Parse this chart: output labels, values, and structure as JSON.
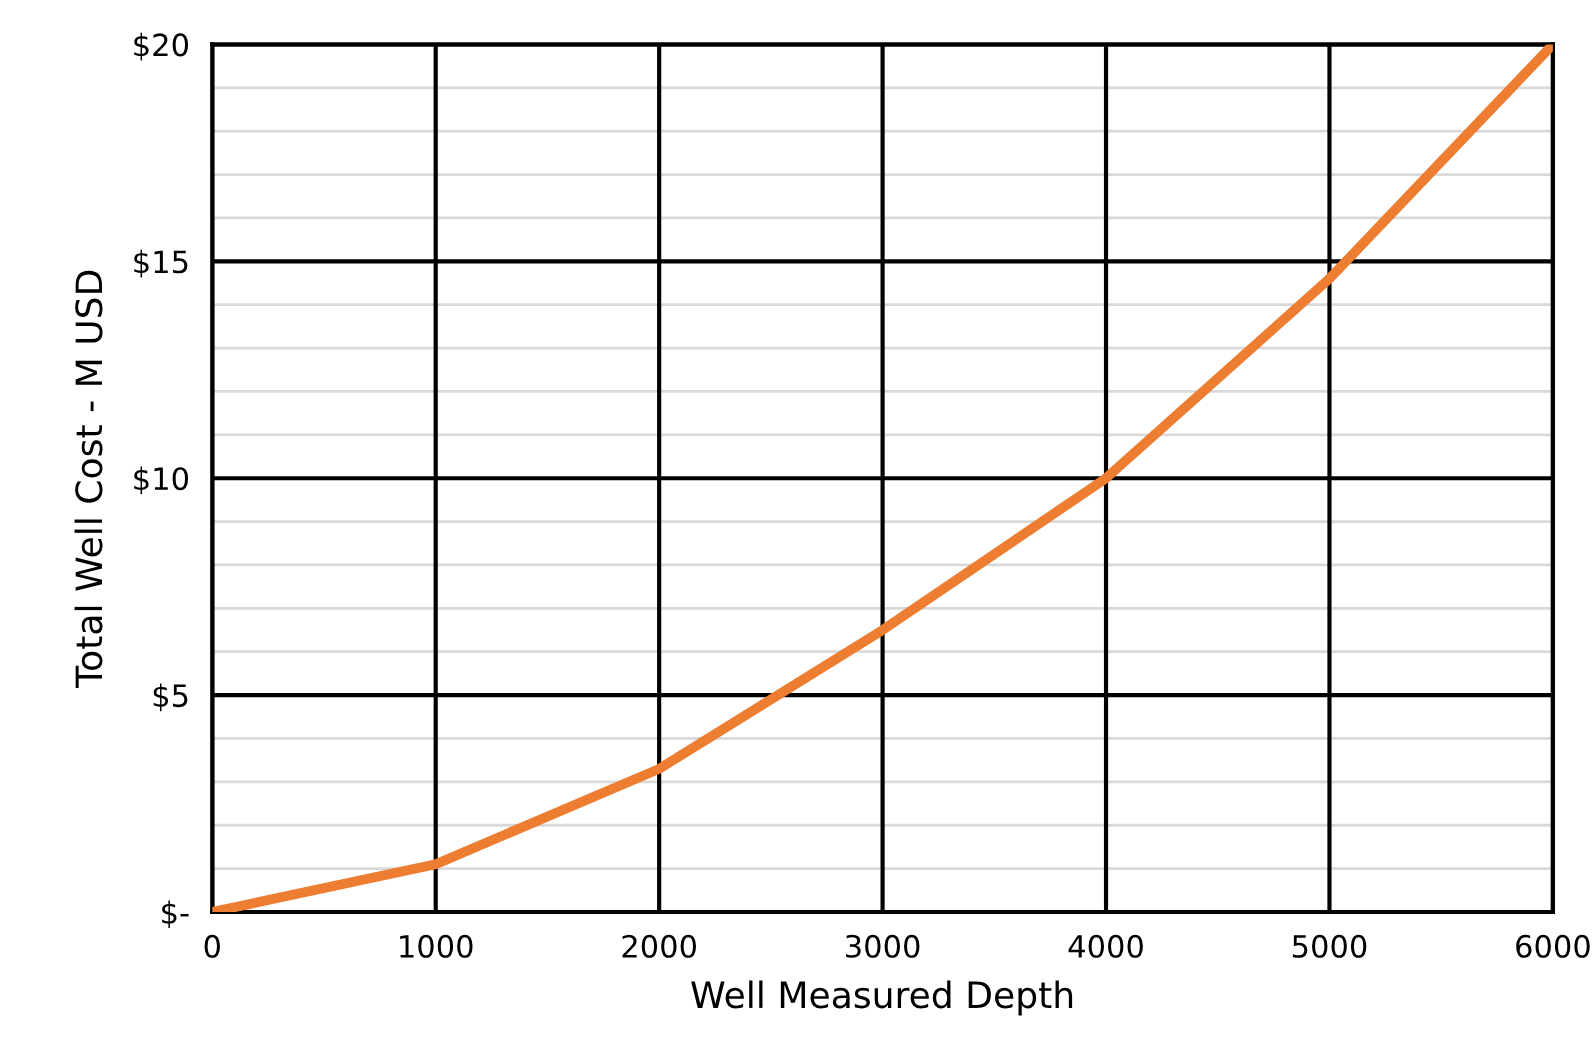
{
  "chart_data": {
    "type": "line",
    "xlabel": "Well Measured Depth",
    "ylabel": "Total Well Cost - M USD",
    "x": [
      0,
      1000,
      2000,
      3000,
      4000,
      5000,
      6000
    ],
    "series": [
      {
        "color": "#ed7d31",
        "values": [
          0,
          1.1,
          3.3,
          6.5,
          10.0,
          14.6,
          20
        ]
      }
    ],
    "xlim": [
      0,
      6000
    ],
    "xticks": [
      0,
      1000,
      2000,
      3000,
      4000,
      5000,
      6000
    ],
    "ylim": [
      0,
      20
    ],
    "yticks": [
      {
        "value": 0,
        "label": "$-"
      },
      {
        "value": 1,
        "label": null
      },
      {
        "value": 2,
        "label": null
      },
      {
        "value": 3,
        "label": null
      },
      {
        "value": 4,
        "label": null
      },
      {
        "value": 5,
        "label": "$5"
      },
      {
        "value": 6,
        "label": null
      },
      {
        "value": 7,
        "label": null
      },
      {
        "value": 8,
        "label": null
      },
      {
        "value": 9,
        "label": null
      },
      {
        "value": 10,
        "label": "$10"
      },
      {
        "value": 11,
        "label": null
      },
      {
        "value": 12,
        "label": null
      },
      {
        "value": 13,
        "label": null
      },
      {
        "value": 14,
        "label": null
      },
      {
        "value": 15,
        "label": "$15"
      },
      {
        "value": 16,
        "label": null
      },
      {
        "value": 17,
        "label": null
      },
      {
        "value": 18,
        "label": null
      },
      {
        "value": 19,
        "label": null
      },
      {
        "value": 20,
        "label": "$20"
      }
    ],
    "grid": true,
    "marker": "none",
    "line_style": "solid",
    "legend": false
  }
}
